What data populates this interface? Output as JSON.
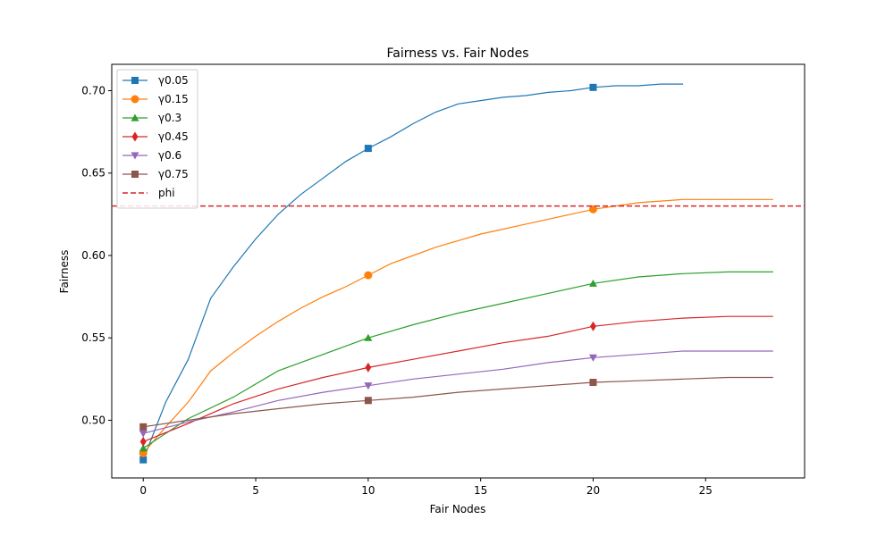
{
  "chart_data": {
    "type": "line",
    "title": "Fairness vs. Fair Nodes",
    "xlabel": "Fair Nodes",
    "ylabel": "Fairness",
    "xlim": [
      -1.4,
      29.4
    ],
    "ylim": [
      0.465,
      0.716
    ],
    "xticks": [
      0,
      5,
      10,
      15,
      20,
      25
    ],
    "yticks": [
      0.5,
      0.55,
      0.6,
      0.65,
      0.7
    ],
    "xtick_labels": [
      "0",
      "5",
      "10",
      "15",
      "20",
      "25"
    ],
    "ytick_labels": [
      "0.50",
      "0.55",
      "0.60",
      "0.65",
      "0.70"
    ],
    "grid": false,
    "legend_position": "top-left",
    "marker_x": [
      0,
      10,
      20
    ],
    "series": [
      {
        "name": "γ0.05",
        "color": "#1f77b4",
        "marker": "square",
        "x": [
          0,
          1,
          2,
          3,
          4,
          5,
          6,
          7,
          8,
          9,
          10,
          11,
          12,
          13,
          14,
          15,
          16,
          17,
          18,
          19,
          20,
          21,
          22,
          23,
          24
        ],
        "y": [
          0.476,
          0.511,
          0.537,
          0.574,
          0.593,
          0.61,
          0.625,
          0.637,
          0.647,
          0.657,
          0.665,
          0.672,
          0.68,
          0.687,
          0.692,
          0.694,
          0.696,
          0.697,
          0.699,
          0.7,
          0.702,
          0.703,
          0.703,
          0.704,
          0.704
        ]
      },
      {
        "name": "γ0.15",
        "color": "#ff7f0e",
        "marker": "circle",
        "x": [
          0,
          1,
          2,
          3,
          4,
          5,
          6,
          7,
          8,
          9,
          10,
          11,
          12,
          13,
          14,
          15,
          16,
          17,
          18,
          19,
          20,
          21,
          22,
          23,
          24,
          25,
          26,
          27,
          28
        ],
        "y": [
          0.48,
          0.496,
          0.511,
          0.53,
          0.541,
          0.551,
          0.56,
          0.568,
          0.575,
          0.581,
          0.588,
          0.595,
          0.6,
          0.605,
          0.609,
          0.613,
          0.616,
          0.619,
          0.622,
          0.625,
          0.628,
          0.63,
          0.632,
          0.633,
          0.634,
          0.634,
          0.634,
          0.634,
          0.634
        ]
      },
      {
        "name": "γ0.3",
        "color": "#2ca02c",
        "marker": "triangle-up",
        "x": [
          0,
          2,
          4,
          6,
          8,
          10,
          12,
          14,
          16,
          18,
          20,
          22,
          24,
          26,
          28
        ],
        "y": [
          0.483,
          0.501,
          0.514,
          0.53,
          0.54,
          0.55,
          0.558,
          0.565,
          0.571,
          0.577,
          0.583,
          0.587,
          0.589,
          0.59,
          0.59
        ]
      },
      {
        "name": "γ0.45",
        "color": "#d62728",
        "marker": "diamond",
        "x": [
          0,
          2,
          4,
          6,
          8,
          10,
          12,
          14,
          16,
          18,
          20,
          22,
          24,
          26,
          28
        ],
        "y": [
          0.487,
          0.498,
          0.51,
          0.519,
          0.526,
          0.532,
          0.537,
          0.542,
          0.547,
          0.551,
          0.557,
          0.56,
          0.562,
          0.563,
          0.563
        ]
      },
      {
        "name": "γ0.6",
        "color": "#9467bd",
        "marker": "triangle-down",
        "x": [
          0,
          2,
          4,
          6,
          8,
          10,
          12,
          14,
          16,
          18,
          20,
          22,
          24,
          26,
          28
        ],
        "y": [
          0.492,
          0.499,
          0.505,
          0.512,
          0.517,
          0.521,
          0.525,
          0.528,
          0.531,
          0.535,
          0.538,
          0.54,
          0.542,
          0.542,
          0.542
        ]
      },
      {
        "name": "γ0.75",
        "color": "#8c564b",
        "marker": "square",
        "x": [
          0,
          2,
          4,
          6,
          8,
          10,
          12,
          14,
          16,
          18,
          20,
          22,
          24,
          26,
          28
        ],
        "y": [
          0.496,
          0.5,
          0.504,
          0.507,
          0.51,
          0.512,
          0.514,
          0.517,
          0.519,
          0.521,
          0.523,
          0.524,
          0.525,
          0.526,
          0.526
        ]
      }
    ],
    "reference_line": {
      "name": "phi",
      "y": 0.63,
      "color": "#d62728",
      "style": "dashed"
    }
  }
}
